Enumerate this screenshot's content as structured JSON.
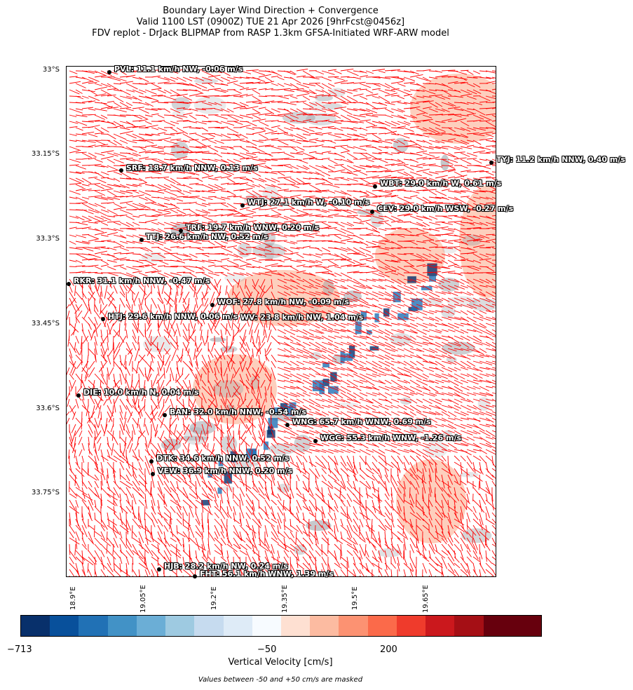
{
  "title": {
    "line1": "Boundary Layer Wind Direction + Convergence",
    "line2": "Valid 1100 LST (0900Z) TUE 21 Apr 2026 [9hrFcst@0456z]",
    "line3": "FDV replot - DrJack BLIPMAP from RASP 1.3km GFSA-Initiated WRF-ARW model"
  },
  "latitude_labels": [
    "33°S",
    "33.15°S",
    "33.3°S",
    "33.45°S",
    "33.6°S",
    "33.75°S"
  ],
  "longitude_labels": [
    "18.9°E",
    "19.05°E",
    "19.2°E",
    "19.35°E",
    "19.5°E",
    "19.65°E"
  ],
  "stations": [
    {
      "label": "PVL: 11.1 km/h NW, -0.06 m/s"
    },
    {
      "label": "TYJ: 11.2 km/h NNW, 0.40 m/s"
    },
    {
      "label": "SRF: 18.7 km/h NNW, 0.13 m/s"
    },
    {
      "label": "WBT: 29.0 km/h W, 0.61 m/s"
    },
    {
      "label": "WTJ: 27.1 km/h W, -0.10 m/s"
    },
    {
      "label": "CEV: 29.0 km/h WSW, -0.27 m/s"
    },
    {
      "label": "TRF: 19.7 km/h WNW, 0.20 m/s"
    },
    {
      "label": "TTJ: 26.6 km/h NW, 0.52 m/s"
    },
    {
      "label": "RKR: 31.1 km/h NNW, -0.47 m/s"
    },
    {
      "label": "WOF: 27.8 km/h NW, -0.09 m/s"
    },
    {
      "label": "HTJ: 29.6 km/h NNW, 0.06 m/s"
    },
    {
      "label": "WV: 23.8 km/h NW, 1.04 m/s"
    },
    {
      "label": "DIE: 10.0 km/h N, 0.04 m/s"
    },
    {
      "label": "BAN: 32.0 km/h NNW, -0.54 m/s"
    },
    {
      "label": "WNG: 65.7 km/h WNW, 0.69 m/s"
    },
    {
      "label": "WGC: 55.3 km/h WNW, -1.26 m/s"
    },
    {
      "label": "DTK: 34.6 km/h NNW, 0.52 m/s"
    },
    {
      "label": "VEW: 36.9 km/h NNW, 0.20 m/s"
    },
    {
      "label": "HJB: 28.2 km/h NW, 0.24 m/s"
    },
    {
      "label": "FHT: 56.1 km/h WNW, 1.39 m/s"
    }
  ],
  "colorbar": {
    "colors": [
      "#08306b",
      "#08509b",
      "#2171b5",
      "#4292c6",
      "#6baed6",
      "#9ecae1",
      "#c6dbef",
      "#deebf7",
      "#f7fbff",
      "#fee0d2",
      "#fcbba1",
      "#fc9272",
      "#fb6a4a",
      "#ef3b2c",
      "#cb181d",
      "#a50f15",
      "#67000d",
      "#67000d"
    ],
    "tick_labels": [
      "−713",
      "−50",
      "200"
    ],
    "label": "Vertical Velocity [cm/s]",
    "note": "Values between -50 and +50 cm/s are masked"
  },
  "arrow_color": "#ff0000"
}
